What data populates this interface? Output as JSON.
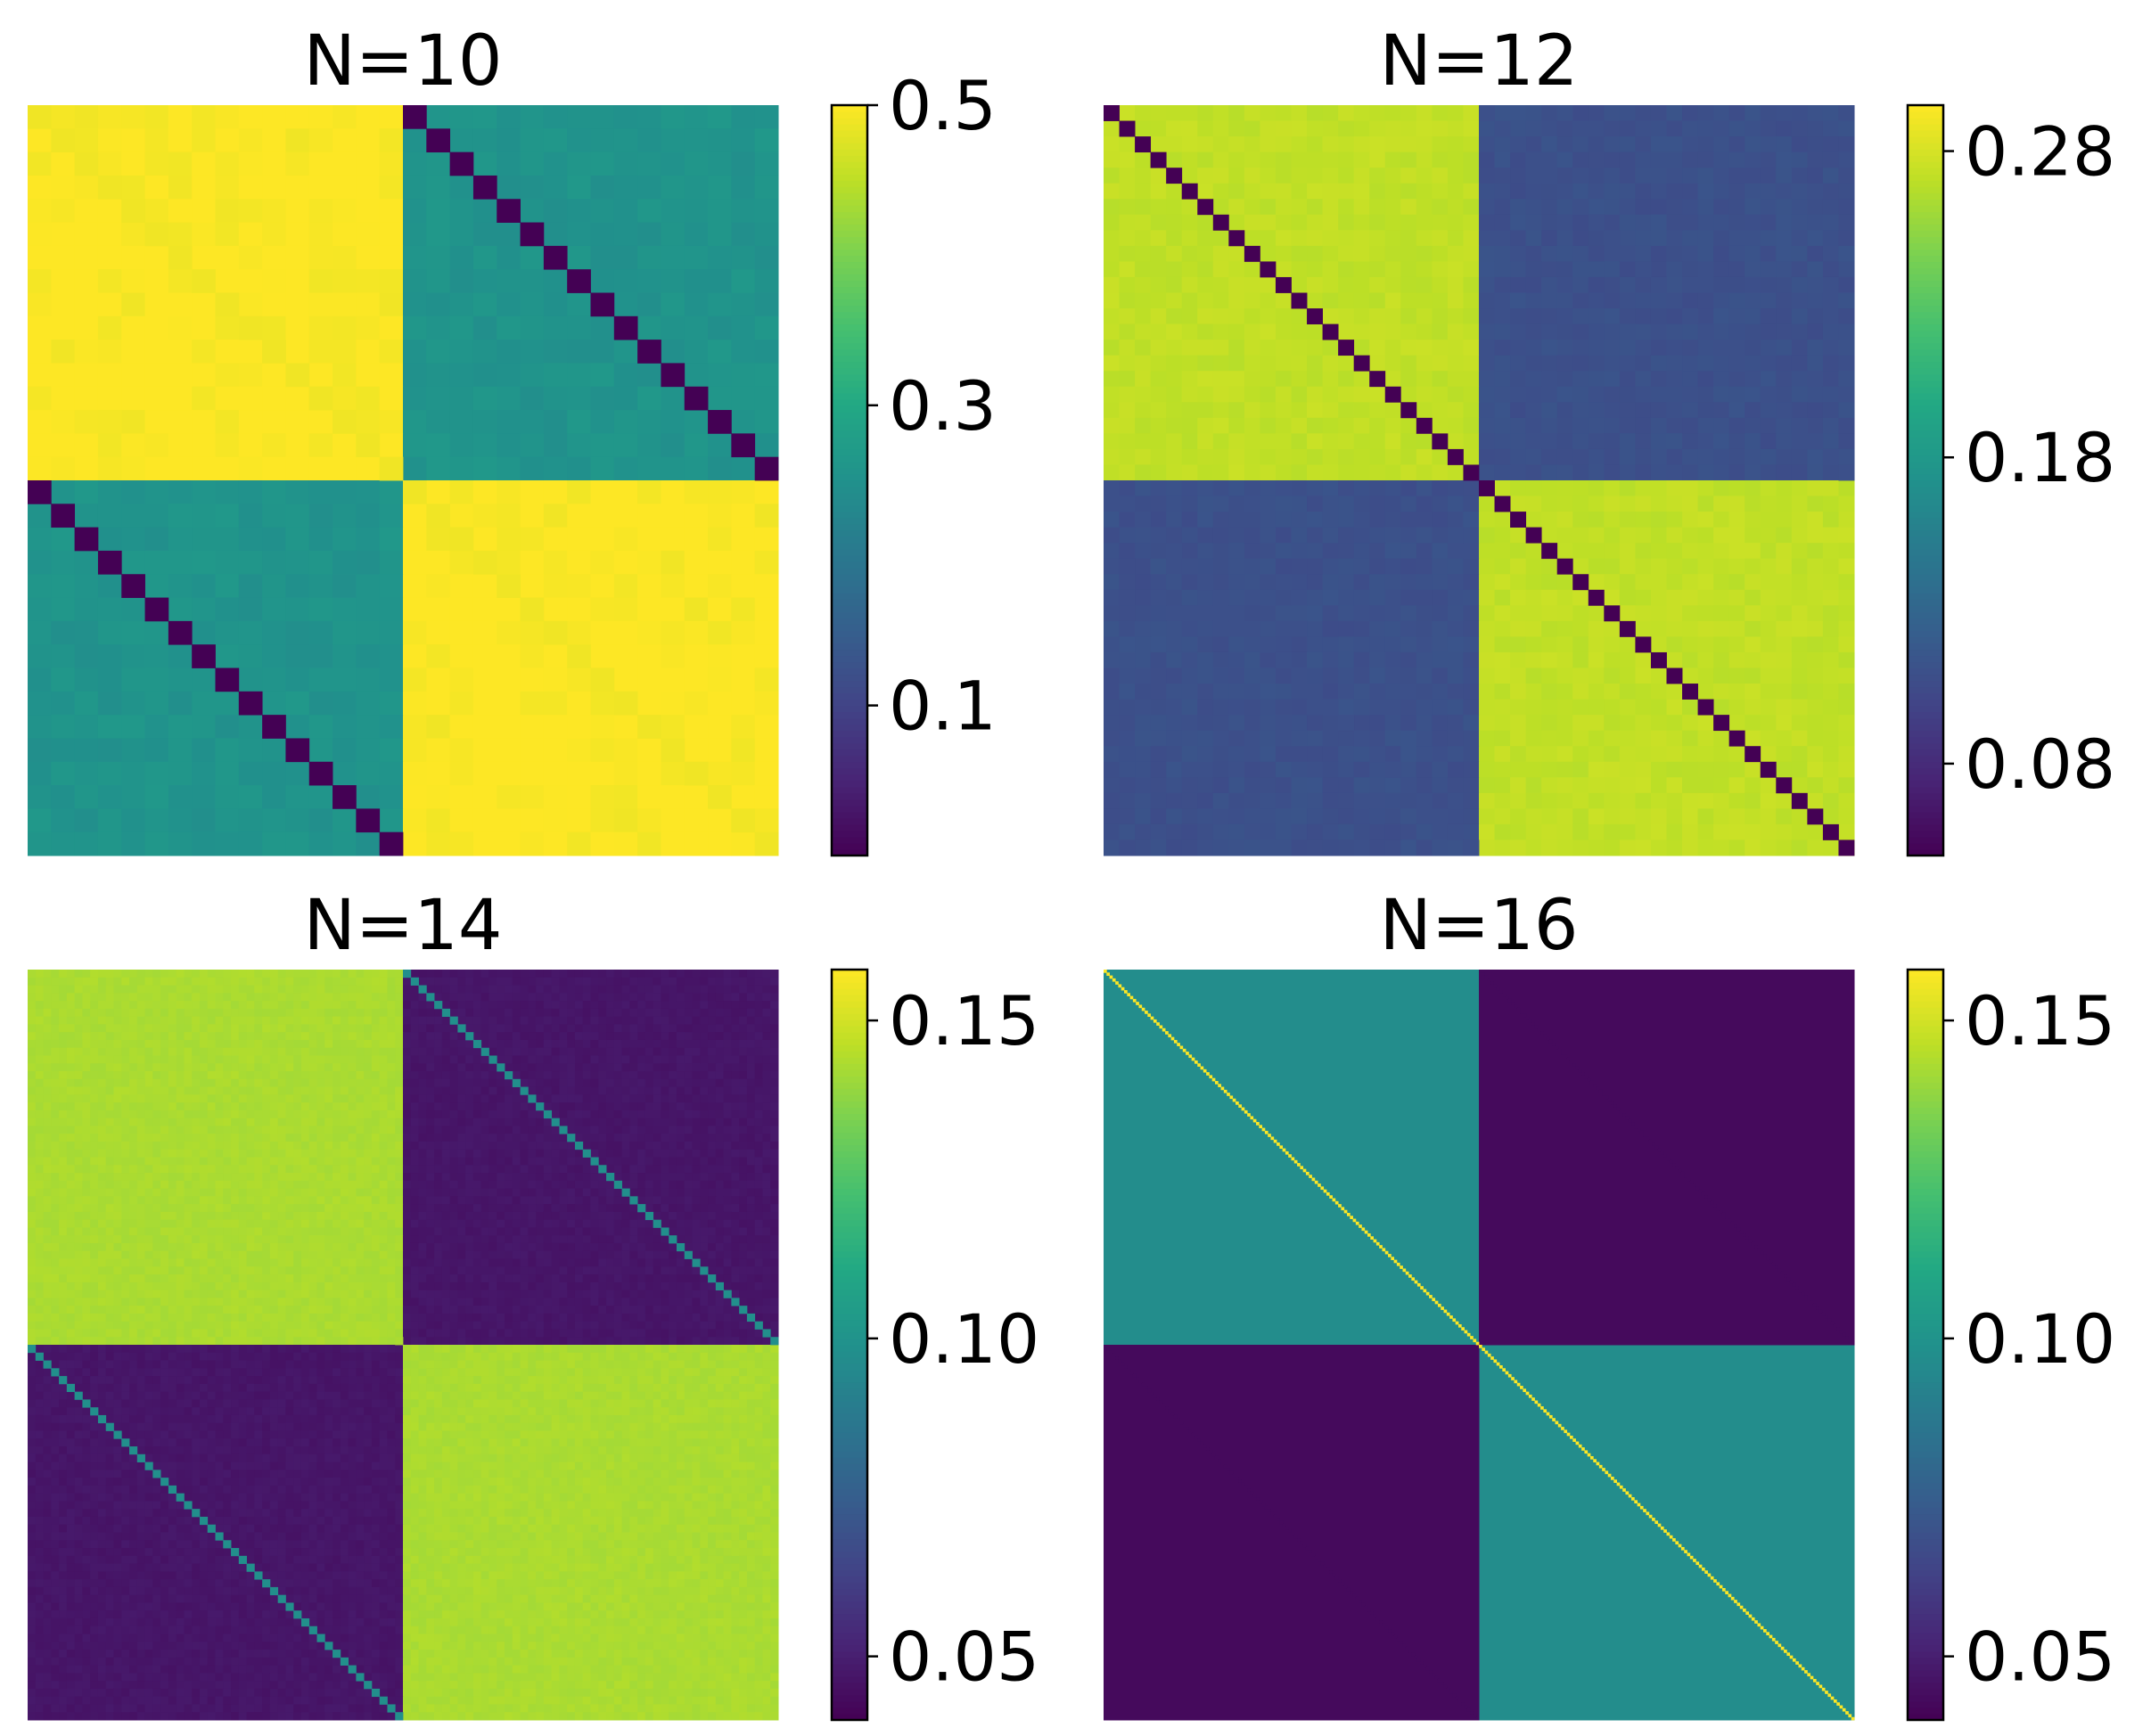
{
  "colormap": "viridis",
  "chart_data": [
    {
      "type": "heatmap",
      "title": "N=10",
      "matrix_size": 32,
      "block_values": {
        "same_half": 0.5,
        "other_half": 0.255
      },
      "same_half_diagonal_value": 0.49,
      "other_half_diagonal_value": 0.0,
      "colorbar": {
        "range": [
          0.0,
          0.5
        ],
        "ticks": [
          0.5,
          0.3,
          0.1
        ],
        "tick_labels": [
          "0.5",
          "0.3",
          "0.1"
        ]
      },
      "axes_visible": false
    },
    {
      "type": "heatmap",
      "title": "N=12",
      "matrix_size": 48,
      "block_values": {
        "same_half": 0.272,
        "other_half": 0.11
      },
      "same_half_diagonal_value": 0.05,
      "other_half_diagonal_value": 0.11,
      "colorbar": {
        "range": [
          0.05,
          0.295
        ],
        "ticks": [
          0.28,
          0.18,
          0.08
        ],
        "tick_labels": [
          "0.28",
          "0.18",
          "0.08"
        ]
      },
      "axes_visible": false
    },
    {
      "type": "heatmap",
      "title": "N=14",
      "matrix_size": 96,
      "block_values": {
        "same_half": 0.143,
        "other_half": 0.047
      },
      "same_half_diagonal_value": 0.143,
      "other_half_diagonal_value": 0.098,
      "colorbar": {
        "range": [
          0.04,
          0.158
        ],
        "ticks": [
          0.15,
          0.1,
          0.05
        ],
        "tick_labels": [
          "0.15",
          "0.10",
          "0.05"
        ]
      },
      "axes_visible": false
    },
    {
      "type": "heatmap",
      "title": "N=16",
      "matrix_size": 256,
      "block_values": {
        "same_half": 0.097,
        "other_half": 0.043
      },
      "same_half_diagonal_value": 0.158,
      "other_half_diagonal_value": 0.043,
      "colorbar": {
        "range": [
          0.04,
          0.158
        ],
        "ticks": [
          0.15,
          0.1,
          0.05
        ],
        "tick_labels": [
          "0.15",
          "0.10",
          "0.05"
        ]
      },
      "axes_visible": false
    }
  ]
}
